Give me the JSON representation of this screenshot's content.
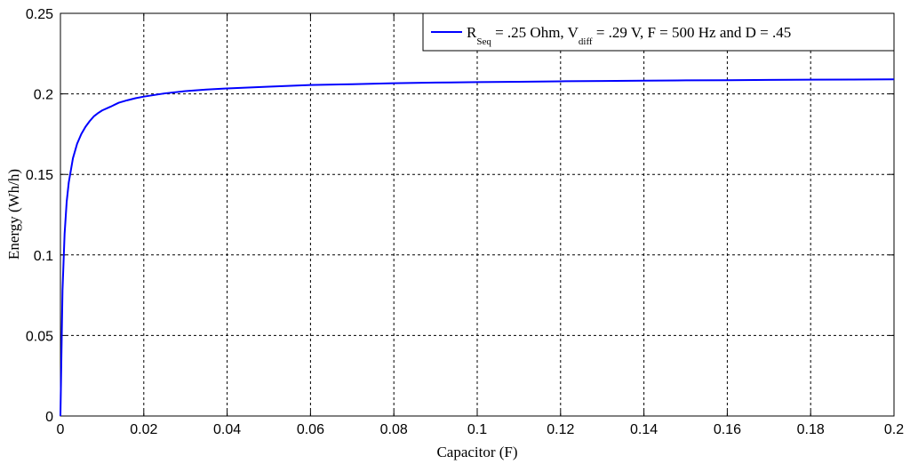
{
  "chart_data": {
    "type": "line",
    "title": "",
    "xlabel": "Capacitor (F)",
    "ylabel": "Energy (Wh/h)",
    "xlim": [
      0,
      0.2
    ],
    "ylim": [
      0,
      0.25
    ],
    "x_ticks": [
      "0",
      "0.02",
      "0.04",
      "0.06",
      "0.08",
      "0.1",
      "0.12",
      "0.14",
      "0.16",
      "0.18",
      "0.2"
    ],
    "y_ticks": [
      "0",
      "0.05",
      "0.1",
      "0.15",
      "0.2",
      "0.25"
    ],
    "grid": true,
    "legend_position": "top-right",
    "legend": {
      "r_main": "R",
      "r_sub": "Seq",
      "mid": " = .25 Ohm, V",
      "v_sub": "diff",
      "tail": " = .29 V, F = 500 Hz and D = .45"
    },
    "series": [
      {
        "color": "#0000ff",
        "x": [
          0,
          0.0005,
          0.001,
          0.0015,
          0.002,
          0.003,
          0.004,
          0.005,
          0.006,
          0.007,
          0.008,
          0.009,
          0.01,
          0.012,
          0.014,
          0.016,
          0.018,
          0.02,
          0.025,
          0.03,
          0.035,
          0.04,
          0.05,
          0.06,
          0.07,
          0.08,
          0.09,
          0.1,
          0.11,
          0.12,
          0.13,
          0.14,
          0.15,
          0.16,
          0.17,
          0.18,
          0.19,
          0.2
        ],
        "y": [
          0,
          0.078,
          0.113,
          0.133,
          0.145,
          0.16,
          0.169,
          0.175,
          0.1795,
          0.183,
          0.186,
          0.188,
          0.1897,
          0.192,
          0.1945,
          0.196,
          0.1973,
          0.1983,
          0.2003,
          0.2017,
          0.2027,
          0.2034,
          0.2045,
          0.2055,
          0.206,
          0.2066,
          0.207,
          0.2073,
          0.2075,
          0.2078,
          0.208,
          0.2082,
          0.2084,
          0.2085,
          0.2087,
          0.2088,
          0.2089,
          0.209
        ]
      }
    ]
  }
}
